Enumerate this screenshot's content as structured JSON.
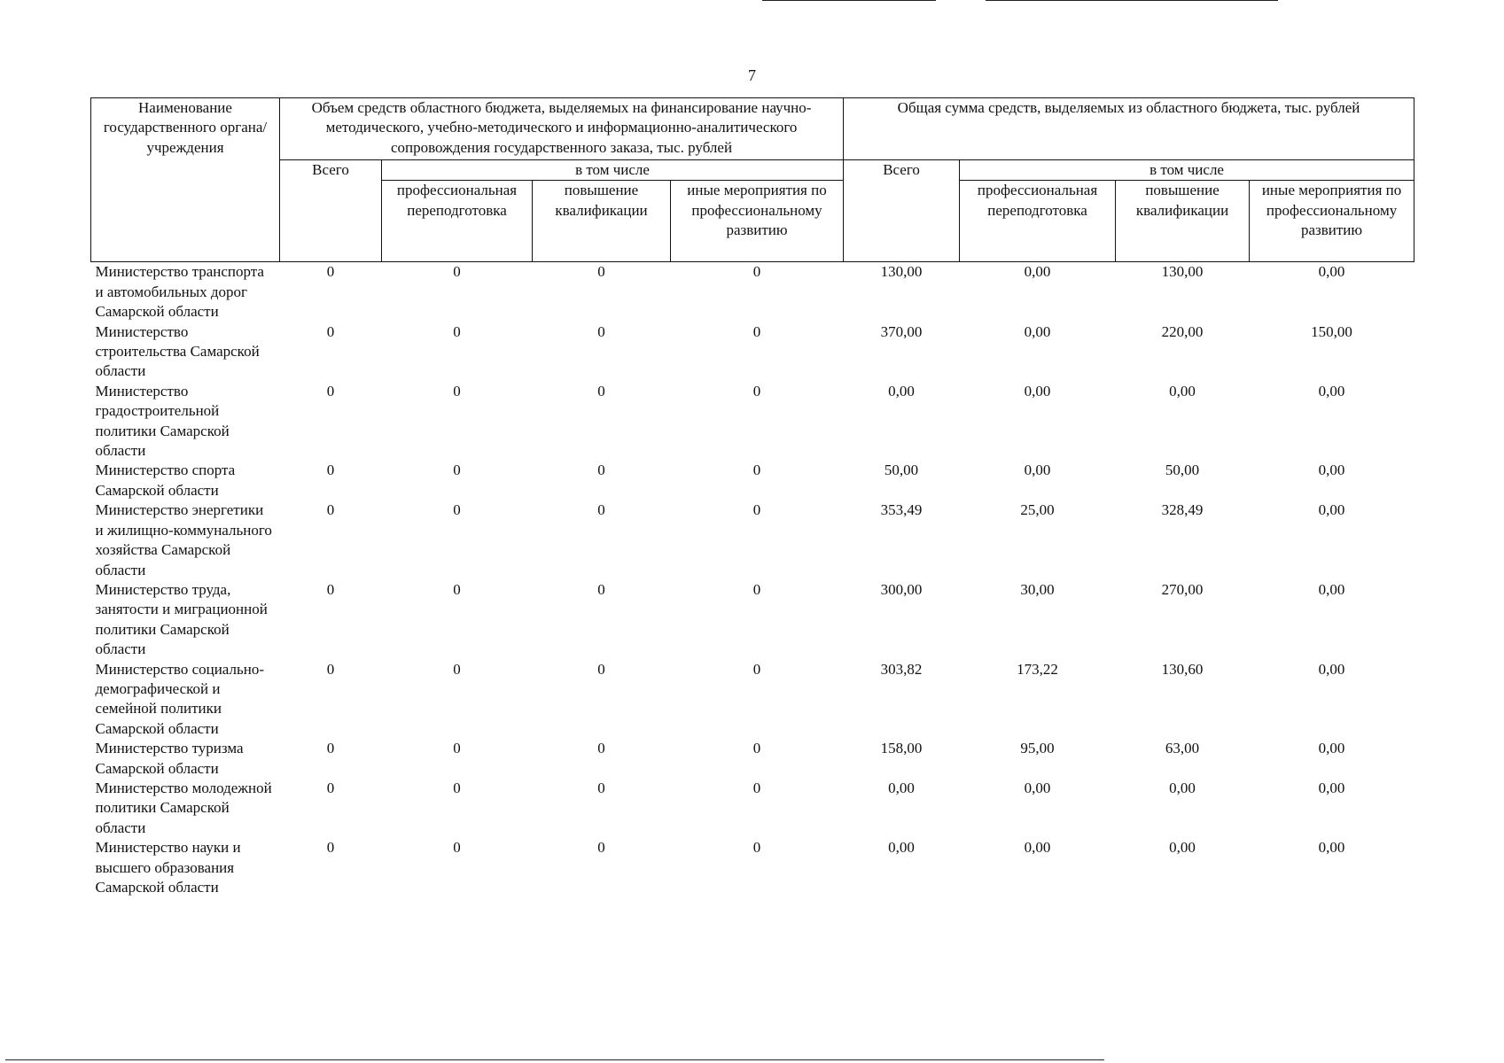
{
  "page_number": "7",
  "table": {
    "header": {
      "name": "Наименование государственного органа/учреждения",
      "groups": [
        {
          "title": "Объем средств областного бюджета, выделяемых на финансирование научно-методического, учебно-методического и информационно-аналитического сопровождения государственного заказа, тыс. рублей",
          "total": "Всего",
          "including": "в том числе",
          "columns": [
            "профессиональная переподготовка",
            "повышение квалификации",
            "иные мероприятия по профессиональному развитию"
          ]
        },
        {
          "title": "Общая сумма средств, выделяемых из областного бюджета, тыс. рублей",
          "total": "Всего",
          "including": "в том числе",
          "columns": [
            "профессиональная переподготовка",
            "повышение квалификации",
            "иные мероприятия по профессиональному развитию"
          ]
        }
      ]
    },
    "rows": [
      [
        "Министерство транспорта и автомобильных дорог Самарской области",
        "0",
        "0",
        "0",
        "0",
        "130,00",
        "0,00",
        "130,00",
        "0,00"
      ],
      [
        "Министерство строительства Самарской области",
        "0",
        "0",
        "0",
        "0",
        "370,00",
        "0,00",
        "220,00",
        "150,00"
      ],
      [
        "Министерство градостроительной политики Самарской области",
        "0",
        "0",
        "0",
        "0",
        "0,00",
        "0,00",
        "0,00",
        "0,00"
      ],
      [
        "Министерство спорта Самарской области",
        "0",
        "0",
        "0",
        "0",
        "50,00",
        "0,00",
        "50,00",
        "0,00"
      ],
      [
        "Министерство энергетики и жилищно-коммунального хозяйства Самарской области",
        "0",
        "0",
        "0",
        "0",
        "353,49",
        "25,00",
        "328,49",
        "0,00"
      ],
      [
        "Министерство труда, занятости и миграционной политики Самарской области",
        "0",
        "0",
        "0",
        "0",
        "300,00",
        "30,00",
        "270,00",
        "0,00"
      ],
      [
        "Министерство социально-демографической и семейной политики Самарской области",
        "0",
        "0",
        "0",
        "0",
        "303,82",
        "173,22",
        "130,60",
        "0,00"
      ],
      [
        "Министерство туризма Самарской области",
        "0",
        "0",
        "0",
        "0",
        "158,00",
        "95,00",
        "63,00",
        "0,00"
      ],
      [
        "Министерство молодежной политики Самарской области",
        "0",
        "0",
        "0",
        "0",
        "0,00",
        "0,00",
        "0,00",
        "0,00"
      ],
      [
        "Министерство науки и высшего образования Самарской области",
        "0",
        "0",
        "0",
        "0",
        "0,00",
        "0,00",
        "0,00",
        "0,00"
      ]
    ]
  }
}
